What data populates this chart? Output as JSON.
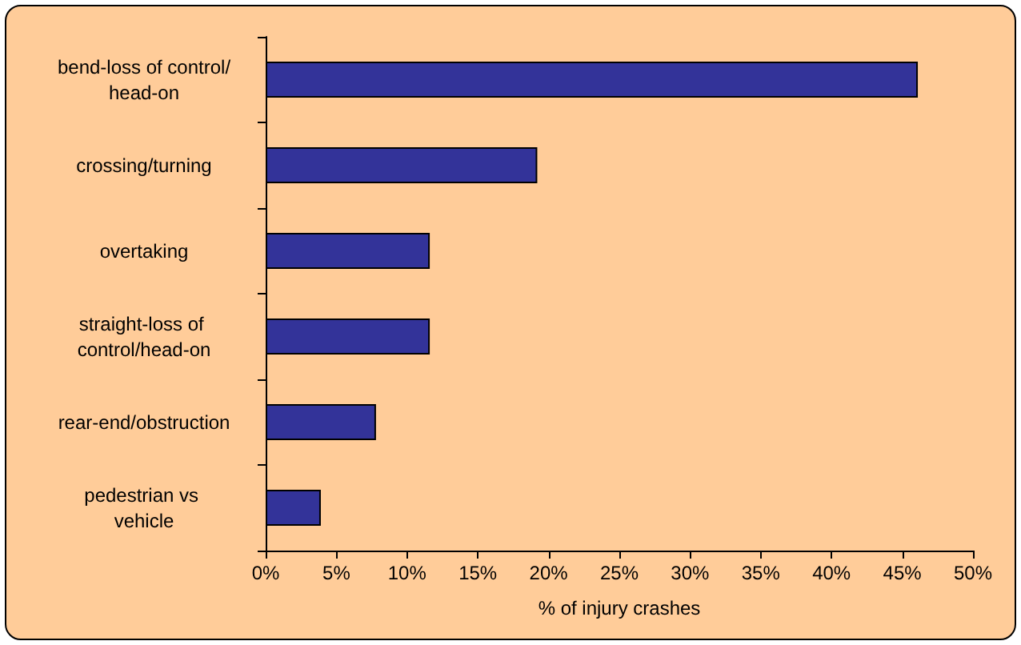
{
  "chart_data": {
    "type": "bar",
    "orientation": "horizontal",
    "categories": [
      "bend-loss of control/head-on",
      "crossing/turning",
      "overtaking",
      "straight-loss of control/head-on",
      "rear-end/obstruction",
      "pedestrian vs vehicle"
    ],
    "values": [
      46.1,
      19.2,
      11.6,
      11.6,
      7.8,
      3.9
    ],
    "color": "#333399",
    "xlabel": "% of injury crashes",
    "xlim": [
      0,
      50
    ],
    "xticks": [
      {
        "value": 0,
        "label": "0%"
      },
      {
        "value": 5,
        "label": "5%"
      },
      {
        "value": 10,
        "label": "10%"
      },
      {
        "value": 15,
        "label": "15%"
      },
      {
        "value": 20,
        "label": "20%"
      },
      {
        "value": 25,
        "label": "25%"
      },
      {
        "value": 30,
        "label": "30%"
      },
      {
        "value": 35,
        "label": "35%"
      },
      {
        "value": 40,
        "label": "40%"
      },
      {
        "value": 45,
        "label": "45%"
      },
      {
        "value": 50,
        "label": "50%"
      }
    ],
    "grid": false
  }
}
